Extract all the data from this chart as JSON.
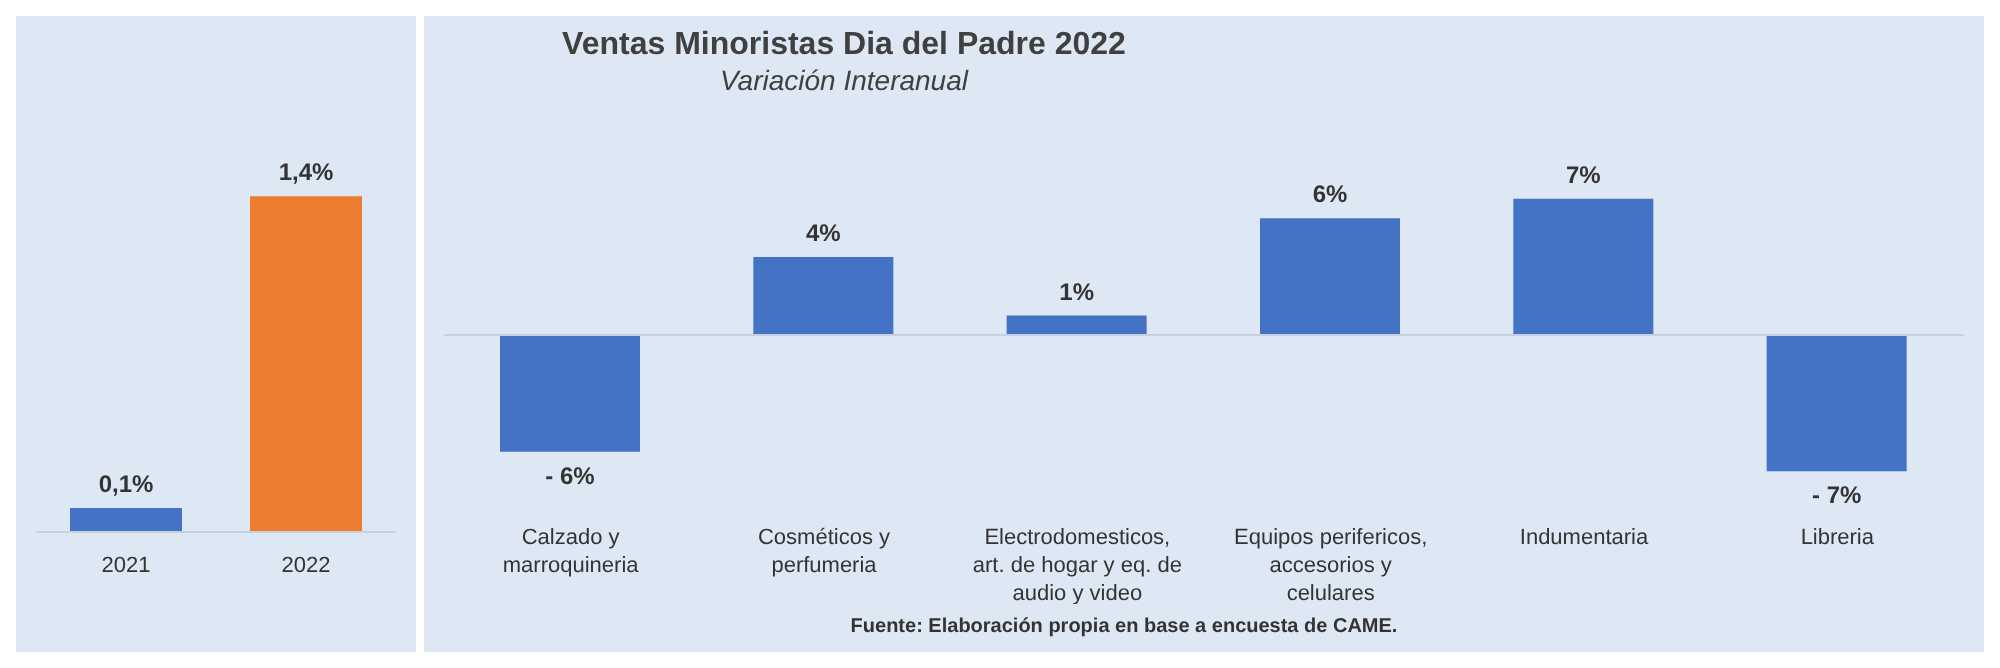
{
  "chart_data": [
    {
      "type": "bar",
      "categories": [
        "2021",
        "2022"
      ],
      "values": [
        0.1,
        1.4
      ],
      "colors": [
        "#4472c4",
        "#ed7d31"
      ],
      "value_labels": [
        "0,1%",
        "1,4%"
      ],
      "legend": false,
      "grid": false
    },
    {
      "type": "bar",
      "title": "Ventas Minoristas Dia del Padre 2022",
      "subtitle": "Variación Interanual",
      "categories": [
        "Calzado y marroquineria",
        "Cosméticos y perfumeria",
        "Electrodomesticos, art. de hogar y eq. de audio y video",
        "Equipos perifericos, accesorios  y celulares",
        "Indumentaria",
        "Libreria"
      ],
      "values": [
        -6,
        4,
        1,
        6,
        7,
        -7
      ],
      "color": "#4472c4",
      "value_labels": [
        "- 6%",
        "4%",
        "1%",
        "6%",
        "7%",
        "- 7%"
      ],
      "legend": false,
      "grid": false,
      "annotations": [
        "Fuente: Elaboración propia en base a encuesta de CAME."
      ]
    }
  ]
}
